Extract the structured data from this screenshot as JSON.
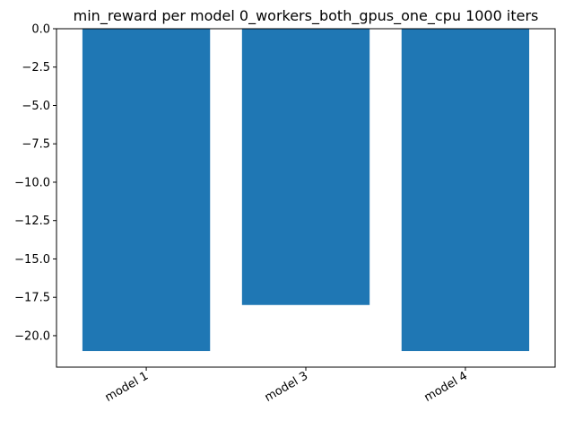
{
  "chart_data": {
    "type": "bar",
    "title": "min_reward per model 0_workers_both_gpus_one_cpu 1000 iters",
    "xlabel": "",
    "ylabel": "",
    "categories": [
      "model 1",
      "model 3",
      "model 4"
    ],
    "values": [
      -21.0,
      -18.0,
      -21.0
    ],
    "ylim": [
      -22.05,
      0.0
    ],
    "yticks": [
      0.0,
      -2.5,
      -5.0,
      -7.5,
      -10.0,
      -12.5,
      -15.0,
      -17.5,
      -20.0
    ],
    "ytick_labels": [
      "0.0",
      "−2.5",
      "−5.0",
      "−7.5",
      "−10.0",
      "−12.5",
      "−15.0",
      "−17.5",
      "−20.0"
    ],
    "bar_color": "#1f77b4",
    "grid": false,
    "legend": "none",
    "xtick_rotation": "30°"
  }
}
